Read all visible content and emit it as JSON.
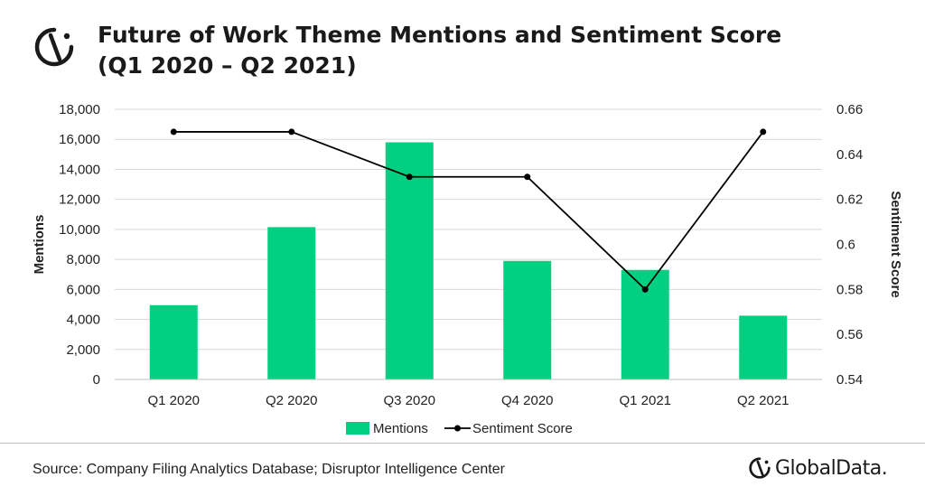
{
  "header": {
    "title_line1": "Future of Work Theme Mentions and Sentiment Score",
    "title_line2": "(Q1 2020 – Q2 2021)",
    "logo_icon": "globaldata-logo-icon"
  },
  "footer": {
    "source": "Source: Company Filing Analytics Database; Disruptor Intelligence Center",
    "brand": "GlobalData."
  },
  "colors": {
    "bar": "#00d07f",
    "line": "#000000",
    "grid": "#d9d9d9"
  },
  "chart_data": {
    "type": "bar",
    "categories": [
      "Q1 2020",
      "Q2 2020",
      "Q3 2020",
      "Q4 2020",
      "Q1 2021",
      "Q2 2021"
    ],
    "series": [
      {
        "name": "Mentions",
        "type": "bar",
        "axis": "left",
        "values": [
          4950,
          10150,
          15800,
          7900,
          7300,
          4250
        ]
      },
      {
        "name": "Sentiment Score",
        "type": "line",
        "axis": "right",
        "values": [
          0.65,
          0.65,
          0.63,
          0.63,
          0.58,
          0.65
        ]
      }
    ],
    "ylabel": "Mentions",
    "y2label": "Sentiment Score",
    "ylim": [
      0,
      18000
    ],
    "y2lim": [
      0.54,
      0.66
    ],
    "yticks": [
      "0",
      "2,000",
      "4,000",
      "6,000",
      "8,000",
      "10,000",
      "12,000",
      "14,000",
      "16,000",
      "18,000"
    ],
    "y2ticks": [
      "0.54",
      "0.56",
      "0.58",
      "0.6",
      "0.62",
      "0.64",
      "0.66"
    ],
    "grid": true,
    "legend": "bottom-center"
  }
}
